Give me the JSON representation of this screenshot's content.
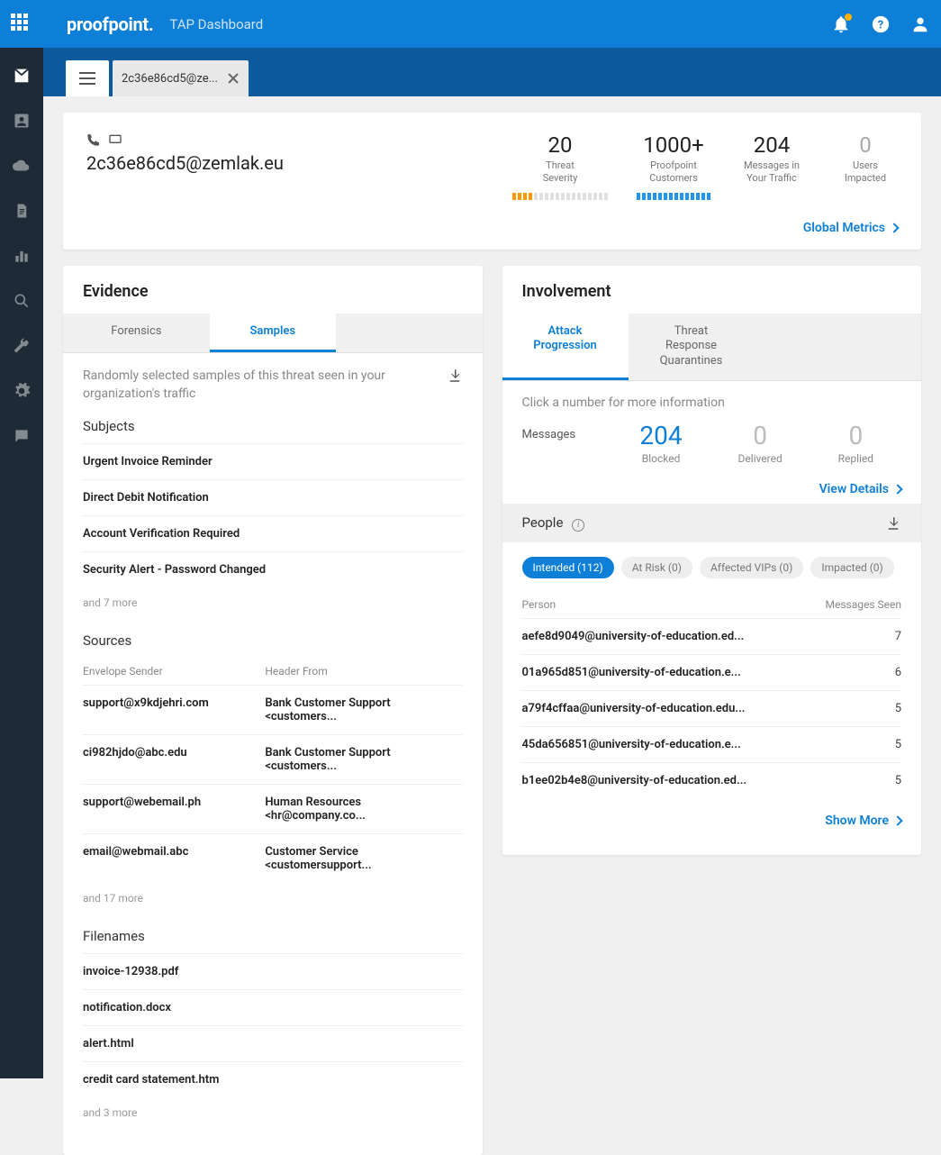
{
  "brand": "proofpoint.",
  "dashboard_title": "TAP Dashboard",
  "tab": {
    "label": "2c36e86cd5@ze..."
  },
  "hero": {
    "email": "2c36e86cd5@zemlak.eu",
    "metrics": [
      {
        "value": "20",
        "label1": "Threat",
        "label2": "Severity",
        "bar": {
          "segments": [
            [
              "#ff9800",
              4
            ],
            [
              "#e0e0e0",
              14
            ]
          ]
        }
      },
      {
        "value": "1000+",
        "label1": "Proofpoint",
        "label2": "Customers",
        "bar": {
          "segments": [
            [
              "#2196f3",
              14
            ]
          ]
        }
      },
      {
        "value": "204",
        "label1": "Messages in",
        "label2": "Your Traffic"
      },
      {
        "value": "0",
        "label1": "Users",
        "label2": "Impacted",
        "dim": true
      }
    ],
    "link": "Global Metrics"
  },
  "evidence": {
    "title": "Evidence",
    "tabs": [
      "Forensics",
      "Samples"
    ],
    "active_tab": 1,
    "description": "Randomly selected samples of this threat seen in your organization's traffic",
    "subjects": {
      "title": "Subjects",
      "rows": [
        "Urgent Invoice Reminder",
        "Direct Debit Notification",
        "Account Verification Required",
        "Security Alert - Password Changed"
      ],
      "more": "and 7 more"
    },
    "sources": {
      "title": "Sources",
      "col1": "Envelope Sender",
      "col2": "Header From",
      "rows": [
        [
          "support@x9kdjehri.com",
          "Bank Customer Support <customers..."
        ],
        [
          "ci982hjdo@abc.edu",
          "Bank Customer Support <customers..."
        ],
        [
          "support@webemail.ph",
          "Human Resources <hr@company.co..."
        ],
        [
          "email@webmail.abc",
          "Customer Service <customersupport..."
        ]
      ],
      "more": "and 17 more"
    },
    "filenames": {
      "title": "Filenames",
      "rows": [
        "invoice-12938.pdf",
        "notification.docx",
        "alert.html",
        "credit card statement.htm"
      ],
      "more": "and 3 more"
    }
  },
  "involvement": {
    "title": "Involvement",
    "tabs": [
      "Attack Progression",
      "Threat Response Quarantines"
    ],
    "active_tab": 0,
    "hint": "Click a number for more information",
    "msgs_label": "Messages",
    "stats": [
      {
        "value": "204",
        "label": "Blocked",
        "blue": true
      },
      {
        "value": "0",
        "label": "Delivered",
        "dim": true
      },
      {
        "value": "0",
        "label": "Replied",
        "dim": true
      }
    ],
    "details_link": "View Details",
    "people": {
      "title": "People",
      "chips": [
        {
          "label": "Intended (112)",
          "active": true
        },
        {
          "label": "At Risk (0)"
        },
        {
          "label": "Affected VIPs (0)"
        },
        {
          "label": "Impacted (0)"
        }
      ],
      "col1": "Person",
      "col2": "Messages Seen",
      "rows": [
        [
          "aefe8d9049@university-of-education.ed...",
          "7"
        ],
        [
          "01a965d851@university-of-education.e...",
          "6"
        ],
        [
          "a79f4cffaa@university-of-education.edu...",
          "5"
        ],
        [
          "45da656851@university-of-education.e...",
          "5"
        ],
        [
          "b1ee02b4e8@university-of-education.ed...",
          "5"
        ]
      ],
      "more_link": "Show More"
    }
  }
}
